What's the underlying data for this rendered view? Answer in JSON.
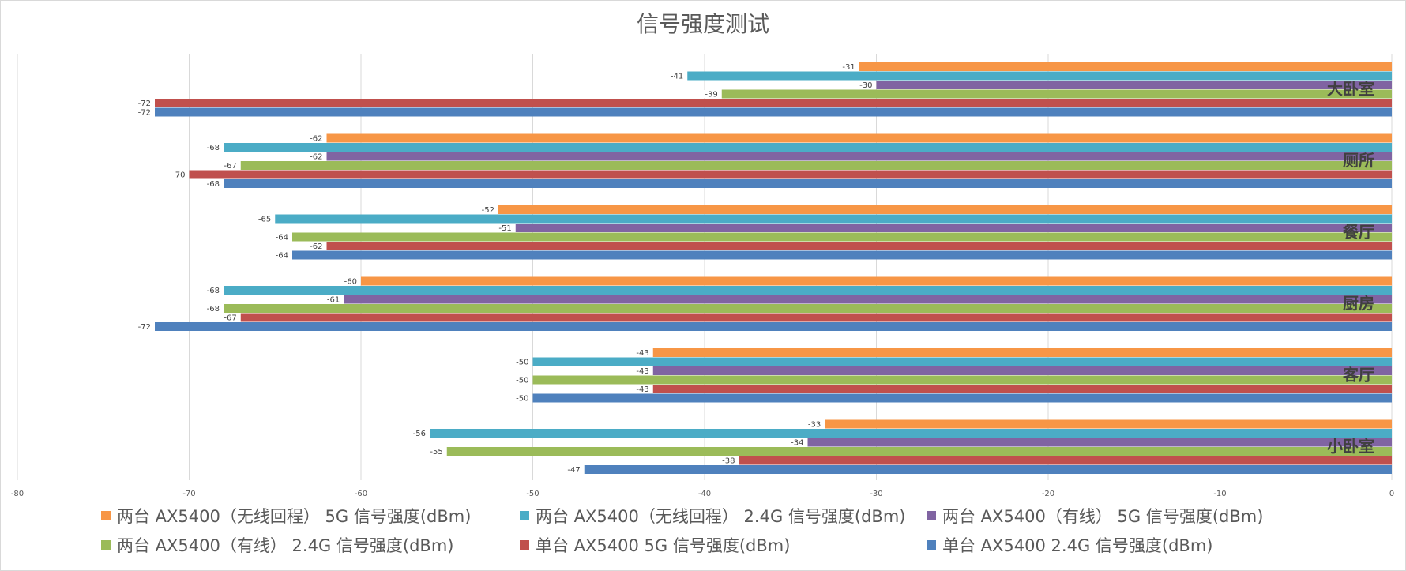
{
  "chart_data": {
    "type": "bar",
    "orientation": "horizontal",
    "title": "信号强度测试",
    "categories": [
      "大卧室",
      "厕所",
      "餐厅",
      "厨房",
      "客厅",
      "小卧室"
    ],
    "xlim": [
      -80,
      0
    ],
    "xticks": [
      "-80",
      "-70",
      "-60",
      "-50",
      "-40",
      "-30",
      "-20",
      "-10",
      "0"
    ],
    "grid": "vertical",
    "legend_position": "bottom",
    "series": [
      {
        "name": "两台 AX5400（无线回程） 5G 信号强度(dBm)",
        "color": "#F79646",
        "values": [
          -31,
          -62,
          -52,
          -60,
          -43,
          -33
        ]
      },
      {
        "name": "两台 AX5400（无线回程） 2.4G 信号强度(dBm)",
        "color": "#4BACC6",
        "values": [
          -41,
          -68,
          -65,
          -68,
          -50,
          -56
        ]
      },
      {
        "name": "两台 AX5400（有线） 5G 信号强度(dBm)",
        "color": "#8064A2",
        "values": [
          -30,
          -62,
          -51,
          -61,
          -43,
          -34
        ]
      },
      {
        "name": "两台 AX5400（有线） 2.4G 信号强度(dBm)",
        "color": "#9BBB59",
        "values": [
          -39,
          -67,
          -64,
          -68,
          -50,
          -55
        ]
      },
      {
        "name": "单台 AX5400 5G 信号强度(dBm)",
        "color": "#C0504D",
        "values": [
          -72,
          -70,
          -62,
          -67,
          -43,
          -38
        ]
      },
      {
        "name": "单台 AX5400 2.4G 信号强度(dBm)",
        "color": "#4F81BD",
        "values": [
          -72,
          -68,
          -64,
          -72,
          -50,
          -47
        ]
      }
    ]
  }
}
